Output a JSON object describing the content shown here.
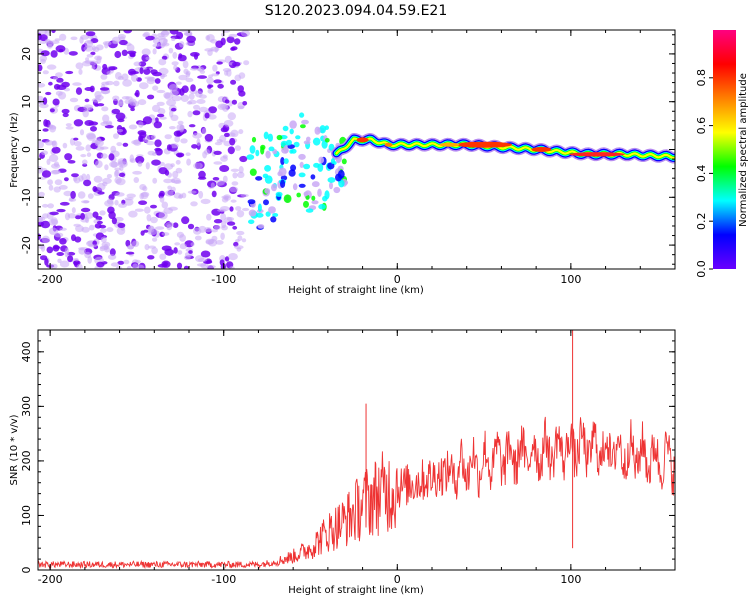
{
  "title": "S120.2023.094.04.59.E21",
  "chart_data": [
    {
      "type": "heatmap",
      "xlabel": "Height of straight line (km)",
      "ylabel": "Frequency (Hz)",
      "xlim": [
        -207,
        160
      ],
      "ylim": [
        -25,
        25
      ],
      "x_ticks": [
        "-200",
        "-100",
        "0",
        "100"
      ],
      "x_tick_values": [
        -200,
        -100,
        0,
        100
      ],
      "y_ticks": [
        "-20",
        "-10",
        "0",
        "10",
        "20"
      ],
      "y_tick_values": [
        -20,
        -10,
        0,
        10,
        20
      ],
      "colorbar": {
        "label": "Normalized spectral amplitude",
        "range": [
          0,
          1
        ],
        "ticks": [
          "0.0",
          "0.2",
          "0.4",
          "0.6",
          "0.8"
        ],
        "tick_values": [
          0,
          0.2,
          0.4,
          0.6,
          0.8
        ],
        "colormap": [
          "#ffffff",
          "#6a00ff",
          "#0000ff",
          "#00ffff",
          "#00ff00",
          "#ffff00",
          "#ff8000",
          "#ff0000",
          "#ff0080"
        ]
      },
      "ridge": {
        "x": [
          -85,
          -75,
          -65,
          -55,
          -45,
          -35,
          -25,
          -15,
          -5,
          5,
          20,
          40,
          60,
          80,
          95,
          110,
          130,
          160
        ],
        "y": [
          -5,
          -3,
          -1,
          1,
          -2,
          -1,
          2,
          2,
          1,
          1,
          1,
          1,
          0.5,
          0,
          -0.5,
          -1,
          -1,
          -1.5
        ]
      }
    },
    {
      "type": "line",
      "xlabel": "Height of straight line (km)",
      "ylabel": "SNR (10 * v/v)",
      "xlim": [
        -207,
        160
      ],
      "ylim": [
        0,
        440
      ],
      "x_ticks": [
        "-200",
        "-100",
        "0",
        "100"
      ],
      "x_tick_values": [
        -200,
        -100,
        0,
        100
      ],
      "y_ticks": [
        "0",
        "100",
        "200",
        "300",
        "400"
      ],
      "y_tick_values": [
        0,
        100,
        200,
        300,
        400
      ],
      "color": "#ee3333",
      "envelope": {
        "x": [
          -207,
          -80,
          -70,
          -60,
          -50,
          -40,
          -30,
          -20,
          -10,
          0,
          20,
          40,
          60,
          80,
          100,
          120,
          140,
          160
        ],
        "y": [
          10,
          10,
          15,
          25,
          40,
          70,
          90,
          120,
          140,
          150,
          170,
          190,
          205,
          215,
          225,
          220,
          210,
          200
        ]
      },
      "spikes": [
        {
          "x": -18,
          "y": 305
        },
        {
          "x": 101,
          "y": 440
        },
        {
          "x": 101,
          "y": 40
        }
      ]
    }
  ]
}
